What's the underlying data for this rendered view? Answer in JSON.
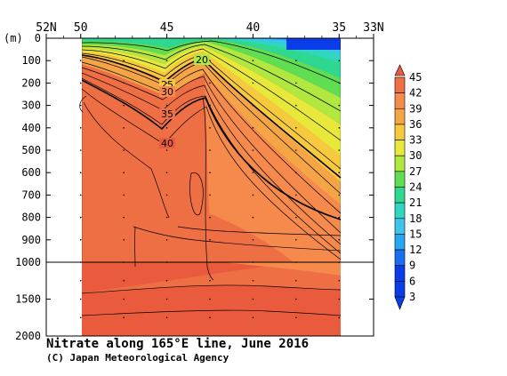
{
  "chart_data": {
    "type": "heatmap",
    "title": "Nitrate along 165°E line, June 2016",
    "credit": "(C) Japan Meteorological Agency",
    "x_ticks": [
      "52N",
      "50",
      "45",
      "40",
      "35",
      "33N"
    ],
    "x_tick_values": [
      52,
      50,
      45,
      40,
      35,
      33
    ],
    "x_range": [
      52,
      33
    ],
    "data_lat_range": [
      50,
      35
    ],
    "y_unit": "(m)",
    "y_ticks_upper": [
      "0",
      "100",
      "200",
      "300",
      "400",
      "500",
      "600",
      "700",
      "800",
      "900",
      "1000"
    ],
    "y_ticks_lower": [
      "1500",
      "2000"
    ],
    "y_axis_break": 1000,
    "y_range": [
      0,
      2000
    ],
    "colorbar_labels": [
      "45",
      "42",
      "39",
      "36",
      "33",
      "30",
      "27",
      "24",
      "21",
      "18",
      "15",
      "12",
      "9",
      "6",
      "3"
    ],
    "colorbar_levels": [
      3,
      6,
      9,
      12,
      15,
      18,
      21,
      24,
      27,
      30,
      33,
      36,
      39,
      42,
      45
    ],
    "colorbar_colors": [
      "#0a3de8",
      "#1a6ff0",
      "#25a6f2",
      "#3ec4ea",
      "#2fd6c2",
      "#2fd890",
      "#5fde52",
      "#b0e840",
      "#e8e83a",
      "#f7c93c",
      "#f5a546",
      "#f58a4c",
      "#ee6f44",
      "#ea5a3c"
    ],
    "contour_labels": [
      "20",
      "25",
      "30",
      "35",
      "40"
    ],
    "contour_label_depths_m": [
      100,
      210,
      240,
      340,
      470
    ]
  }
}
